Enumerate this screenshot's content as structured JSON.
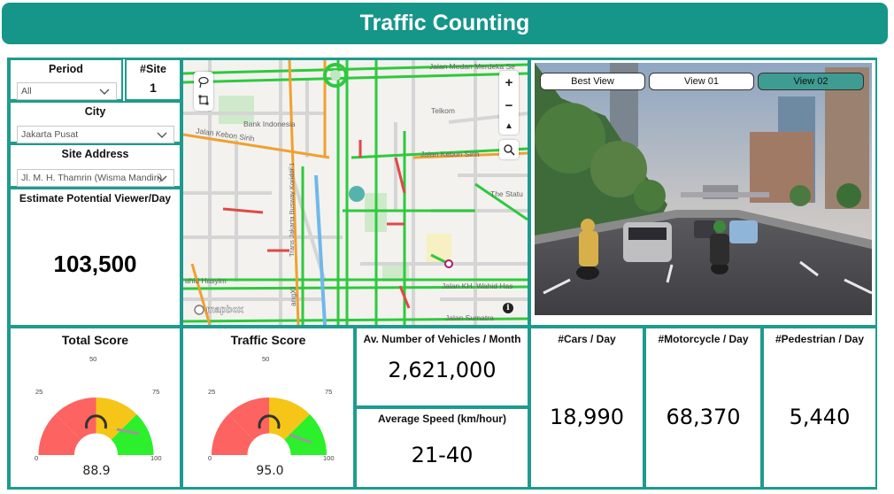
{
  "header": {
    "title": "Traffic Counting"
  },
  "filters": {
    "period": {
      "label": "Period",
      "value": "All"
    },
    "site_count": {
      "label": "#Site",
      "value": "1"
    },
    "city": {
      "label": "City",
      "value": "Jakarta Pusat"
    },
    "site_address": {
      "label": "Site Address",
      "value": "Jl. M. H. Thamrin (Wisma Mandiri)"
    }
  },
  "viewer": {
    "label": "Estimate Potential Viewer/Day",
    "value": "103,500"
  },
  "map": {
    "attribution": "mapbox",
    "street_labels": {
      "merdeka": "Jalan Medan Merdeka Se",
      "bank": "Bank Indonesia",
      "telkom": "Telkom",
      "kebon_sirih_left": "Jalan Kebon Sirih",
      "kebon_sirih_right": "Jalan Kebon Sirih",
      "statum": "The Statu",
      "hasyim": "ahid Hasyim",
      "wahid": "Jalan KH. Wahid Has",
      "sumatra": "Jalan Sumatra",
      "busway": "Trans Jakarta Busway Koridor 1",
      "angxi": "angXI"
    },
    "controls": {
      "zoom_in": "+",
      "zoom_out": "−",
      "compass": "▲",
      "info": "i"
    }
  },
  "camera": {
    "buttons": [
      "Best View",
      "View 01",
      "View 02"
    ],
    "active_index": 2
  },
  "scores": {
    "total": {
      "title": "Total Score",
      "value": "88.9",
      "ticks": [
        "0",
        "25",
        "50",
        "75",
        "100"
      ]
    },
    "traffic": {
      "title": "Traffic Score",
      "value": "95.0",
      "ticks": [
        "0",
        "25",
        "50",
        "75",
        "100"
      ]
    }
  },
  "metrics": {
    "vehicles_month": {
      "label": "Av. Number of Vehicles / Month",
      "value": "2,621,000"
    },
    "avg_speed": {
      "label": "Average Speed (km/hour)",
      "value": "21-40"
    },
    "cars": {
      "label": "#Cars / Day",
      "value": "18,990"
    },
    "motorcycle": {
      "label": "#Motorcycle / Day",
      "value": "68,370"
    },
    "pedestrian": {
      "label": "#Pedestrian / Day",
      "value": "5,440"
    }
  },
  "colors": {
    "accent": "#1e9b8e",
    "gauge_red": "#fd6360",
    "gauge_yellow": "#f5c518",
    "gauge_green": "#2bf02b"
  }
}
